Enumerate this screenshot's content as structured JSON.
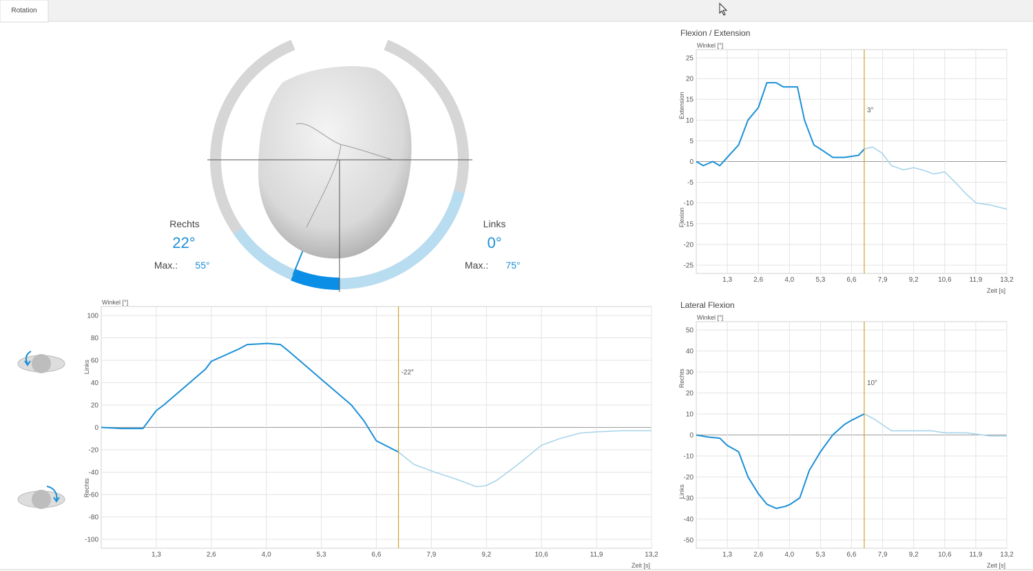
{
  "tab": "Rotation",
  "gauge": {
    "right": {
      "label": "Rechts",
      "value": 22,
      "value_label": "22°",
      "max_label": "Max.:",
      "max": 55,
      "max_value_label": "55°"
    },
    "left": {
      "label": "Links",
      "value": 0,
      "value_label": "0°",
      "max_label": "Max.:",
      "max": 75,
      "max_value_label": "75°"
    }
  },
  "chart_data": [
    {
      "type": "line",
      "ylabel": "Winkel [°]",
      "xlabel": "Zeit [s]",
      "side_labels": [
        "Links",
        "Rechts"
      ],
      "x": [
        0,
        0.5,
        1.0,
        1.32,
        1.5,
        2.0,
        2.5,
        2.64,
        3.0,
        3.3,
        3.5,
        4.0,
        4.3,
        4.5,
        5.0,
        5.28,
        5.5,
        6.0,
        6.3,
        6.6,
        7.13,
        7.5,
        8.0,
        8.5,
        9.0,
        9.24,
        9.5,
        10.0,
        10.56,
        11.0,
        11.5,
        11.88,
        12.5,
        13.2
      ],
      "series": [
        {
          "color": "#1a8fd6",
          "values": [
            0,
            -1,
            -1,
            15,
            20,
            36,
            52,
            59,
            65,
            70,
            74,
            75,
            74,
            68,
            52,
            43,
            36,
            20,
            6,
            -12,
            -22,
            null,
            null,
            null,
            null,
            null,
            null,
            null,
            null,
            null,
            null,
            null,
            null,
            null
          ]
        },
        {
          "color": "#a8d4ea",
          "values": [
            null,
            null,
            null,
            null,
            null,
            null,
            null,
            null,
            null,
            null,
            null,
            null,
            null,
            null,
            null,
            null,
            null,
            null,
            null,
            null,
            -22,
            -33,
            -40,
            -46,
            -53,
            -52,
            -47,
            -33,
            -16,
            -10,
            -5,
            -4,
            -3,
            -3
          ]
        }
      ],
      "cursor": {
        "x": 7.13,
        "label": "-22°",
        "color": "#c9a227"
      },
      "xlim": [
        0,
        13.2
      ],
      "ylim": [
        -108,
        108
      ],
      "xticks": [
        {
          "value": 1.32,
          "label": "1,3"
        },
        {
          "value": 2.64,
          "label": "2,6"
        },
        {
          "value": 3.96,
          "label": "4,0"
        },
        {
          "value": 5.28,
          "label": "5,3"
        },
        {
          "value": 6.6,
          "label": "6,6"
        },
        {
          "value": 7.92,
          "label": "7,9"
        },
        {
          "value": 9.24,
          "label": "9,2"
        },
        {
          "value": 10.56,
          "label": "10,6"
        },
        {
          "value": 11.88,
          "label": "11,9"
        },
        {
          "value": 13.2,
          "label": "13,2"
        }
      ],
      "yticks": [
        -100,
        -80,
        -60,
        -40,
        -20,
        0,
        20,
        40,
        60,
        80,
        100
      ],
      "grid": true
    },
    {
      "type": "line",
      "title": "Flexion / Extension",
      "ylabel": "Winkel [°]",
      "xlabel": "Zeit [s]",
      "side_labels": [
        "Extension",
        "Flexion"
      ],
      "x": [
        0,
        0.3,
        0.7,
        1.0,
        1.32,
        1.8,
        2.2,
        2.64,
        3.0,
        3.4,
        3.7,
        4.0,
        4.3,
        4.6,
        5.0,
        5.28,
        5.8,
        6.3,
        6.9,
        7.14,
        7.5,
        7.9,
        8.3,
        8.8,
        9.24,
        9.6,
        10.1,
        10.56,
        11.0,
        11.5,
        11.9,
        12.5,
        13.2
      ],
      "series": [
        {
          "color": "#1a8fd6",
          "values": [
            0,
            -1,
            0,
            -1,
            1,
            4,
            10,
            13,
            19,
            19,
            18,
            18,
            18,
            10,
            4,
            3,
            1,
            1,
            1.5,
            3,
            null,
            null,
            null,
            null,
            null,
            null,
            null,
            null,
            null,
            null,
            null,
            null,
            null
          ]
        },
        {
          "color": "#a8d4ea",
          "values": [
            null,
            null,
            null,
            null,
            null,
            null,
            null,
            null,
            null,
            null,
            null,
            null,
            null,
            null,
            null,
            null,
            null,
            null,
            null,
            3,
            3.5,
            2,
            -1,
            -2,
            -1.5,
            -2,
            -3,
            -2.5,
            -5,
            -8,
            -10,
            -10.5,
            -11.5
          ]
        }
      ],
      "cursor": {
        "x": 7.14,
        "label": "3°",
        "color": "#c9a227"
      },
      "xlim": [
        0,
        13.2
      ],
      "ylim": [
        -27,
        27
      ],
      "xticks": [
        {
          "value": 1.32,
          "label": "1,3"
        },
        {
          "value": 2.64,
          "label": "2,6"
        },
        {
          "value": 3.96,
          "label": "4,0"
        },
        {
          "value": 5.28,
          "label": "5,3"
        },
        {
          "value": 6.6,
          "label": "6,6"
        },
        {
          "value": 7.92,
          "label": "7,9"
        },
        {
          "value": 9.24,
          "label": "9,2"
        },
        {
          "value": 10.56,
          "label": "10,6"
        },
        {
          "value": 11.88,
          "label": "11,9"
        },
        {
          "value": 13.2,
          "label": "13,2"
        }
      ],
      "yticks": [
        -25,
        -20,
        -15,
        -10,
        -5,
        0,
        5,
        10,
        15,
        20,
        25
      ],
      "grid": true
    },
    {
      "type": "line",
      "title": "Lateral Flexion",
      "ylabel": "Winkel [°]",
      "xlabel": "Zeit [s]",
      "side_labels": [
        "Rechts",
        "Links"
      ],
      "x": [
        0,
        0.5,
        1.0,
        1.32,
        1.8,
        2.2,
        2.64,
        3.0,
        3.4,
        3.8,
        4.0,
        4.4,
        4.8,
        5.28,
        5.8,
        6.3,
        6.6,
        7.14,
        7.5,
        7.9,
        8.3,
        9.24,
        10.0,
        10.56,
        11.5,
        12.5,
        13.2
      ],
      "series": [
        {
          "color": "#1a8fd6",
          "values": [
            0,
            -1,
            -1.5,
            -5,
            -8,
            -20,
            -28,
            -33,
            -35,
            -34,
            -33,
            -30,
            -17,
            -8,
            0,
            5,
            7,
            10,
            null,
            null,
            null,
            null,
            null,
            null,
            null,
            null,
            null
          ]
        },
        {
          "color": "#a8d4ea",
          "values": [
            null,
            null,
            null,
            null,
            null,
            null,
            null,
            null,
            null,
            null,
            null,
            null,
            null,
            null,
            null,
            null,
            null,
            10,
            8,
            5,
            2,
            2,
            2,
            1,
            1,
            -0.5,
            -0.5
          ]
        }
      ],
      "cursor": {
        "x": 7.14,
        "label": "10°",
        "color": "#c9a227"
      },
      "xlim": [
        0,
        13.2
      ],
      "ylim": [
        -54,
        54
      ],
      "xticks": [
        {
          "value": 1.32,
          "label": "1,3"
        },
        {
          "value": 2.64,
          "label": "2,6"
        },
        {
          "value": 3.96,
          "label": "4,0"
        },
        {
          "value": 5.28,
          "label": "5,3"
        },
        {
          "value": 6.6,
          "label": "6,6"
        },
        {
          "value": 7.92,
          "label": "7,9"
        },
        {
          "value": 9.24,
          "label": "9,2"
        },
        {
          "value": 10.56,
          "label": "10,6"
        },
        {
          "value": 11.88,
          "label": "11,9"
        },
        {
          "value": 13.2,
          "label": "13,2"
        }
      ],
      "yticks": [
        -50,
        -40,
        -30,
        -20,
        -10,
        0,
        10,
        20,
        30,
        40,
        50
      ],
      "grid": true
    }
  ]
}
